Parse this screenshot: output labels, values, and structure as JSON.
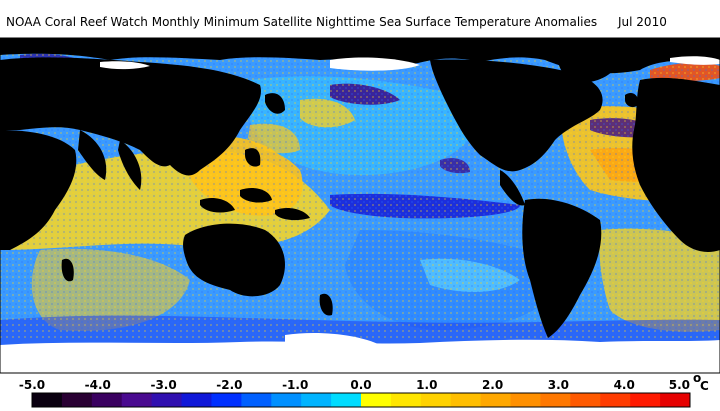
{
  "map": {
    "title": "NOAA Coral Reef Watch Monthly Minimum Satellite Nighttime Sea Surface Temperature Anomalies",
    "date": "Jul 2010"
  },
  "legend": {
    "unit_superscript": "o",
    "unit": "C",
    "ticks": [
      "-5.0",
      "-4.0",
      "-3.0",
      "-2.0",
      "-1.0",
      "0.0",
      "1.0",
      "2.0",
      "3.0",
      "4.0",
      "5.0"
    ],
    "colors": [
      "#0a0010",
      "#2a0033",
      "#3a0060",
      "#4a0a90",
      "#3010b0",
      "#1018d8",
      "#0030ff",
      "#0060ff",
      "#0090ff",
      "#00b4ff",
      "#00dcff",
      "#ffff00",
      "#ffe600",
      "#ffd200",
      "#ffbe00",
      "#ffa800",
      "#ff9000",
      "#ff7800",
      "#ff5a00",
      "#ff3c00",
      "#ff1a00",
      "#e60000"
    ]
  },
  "palette": {
    "land": "#000000",
    "ice": "#ffffff",
    "ocean_cool": "#2a7bff",
    "ocean_neutral": "#3cc8ff",
    "ocean_warm": "#ffe23a",
    "ocean_hot": "#ff9a1a",
    "deep_cool": "#1a2ee0",
    "very_cool": "#3a0a8a"
  }
}
